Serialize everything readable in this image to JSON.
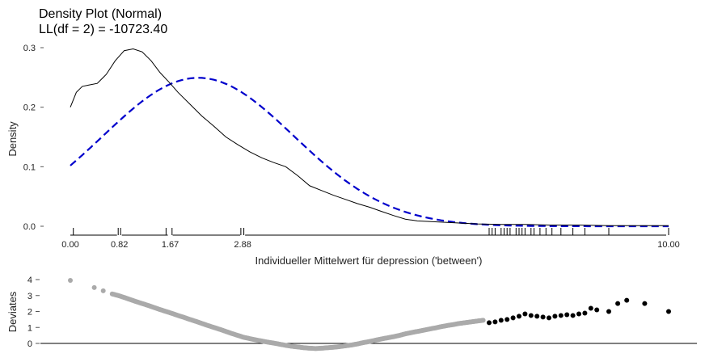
{
  "chart_data": [
    {
      "type": "line",
      "title": "Density Plot (Normal)",
      "subtitle": "LL(df = 2) = -10723.40",
      "xlabel": "Individueller Mittelwert für depression ('between')",
      "ylabel": "Density",
      "xlim": [
        0,
        10
      ],
      "ylim": [
        0,
        0.3
      ],
      "x_ticks": [
        0,
        0.82,
        1.67,
        2.88,
        10
      ],
      "x_tick_labels": [
        "0.00",
        "0.82",
        "1.67",
        "2.88",
        "10.00"
      ],
      "y_ticks": [
        0,
        0.1,
        0.2,
        0.3
      ],
      "y_tick_labels": [
        "0.0",
        "0.1",
        "0.2",
        "0.3"
      ],
      "grid": false,
      "series": [
        {
          "style": "solid",
          "color": "#000000",
          "x": [
            0.0,
            0.1,
            0.2,
            0.3,
            0.45,
            0.6,
            0.75,
            0.9,
            1.05,
            1.2,
            1.35,
            1.5,
            1.65,
            1.8,
            2.0,
            2.2,
            2.4,
            2.6,
            2.8,
            3.0,
            3.2,
            3.4,
            3.6,
            3.8,
            4.0,
            4.2,
            4.4,
            4.6,
            4.8,
            5.0,
            5.2,
            5.4,
            5.6,
            5.8,
            6.0,
            6.4,
            6.8,
            7.2,
            7.6,
            8.0,
            8.5,
            9.0,
            9.5,
            10.0
          ],
          "y": [
            0.2,
            0.225,
            0.235,
            0.237,
            0.24,
            0.255,
            0.278,
            0.295,
            0.298,
            0.293,
            0.278,
            0.258,
            0.242,
            0.225,
            0.205,
            0.185,
            0.168,
            0.15,
            0.137,
            0.125,
            0.115,
            0.107,
            0.1,
            0.085,
            0.068,
            0.06,
            0.052,
            0.045,
            0.038,
            0.032,
            0.025,
            0.018,
            0.012,
            0.009,
            0.008,
            0.006,
            0.004,
            0.003,
            0.003,
            0.002,
            0.002,
            0.001,
            0.001,
            0.001
          ]
        },
        {
          "style": "dashed",
          "color": "#0000cc",
          "distribution": "normal",
          "mean": 2.14,
          "sd": 1.6
        }
      ],
      "rug_ticks": [
        0.05,
        0.8,
        0.84,
        1.6,
        1.7,
        2.85,
        2.9,
        7.0,
        7.05,
        7.1,
        7.2,
        7.25,
        7.3,
        7.35,
        7.45,
        7.5,
        7.55,
        7.6,
        7.7,
        7.75,
        7.85,
        7.95,
        8.05,
        8.2,
        8.4,
        8.6,
        9.0,
        10.0
      ]
    },
    {
      "type": "scatter",
      "ylabel": "Deviates",
      "xlim": [
        0,
        10
      ],
      "ylim": [
        0,
        4
      ],
      "y_ticks": [
        0,
        1,
        2,
        3,
        4
      ],
      "y_tick_labels": [
        "0",
        "1",
        "2",
        "3",
        "4"
      ],
      "grid": false,
      "grey_color": "#aaaaaa",
      "black_color": "#000000",
      "grey_points": {
        "x": [
          0.0,
          0.4,
          0.55,
          0.7,
          0.8,
          0.9,
          1.0,
          1.1,
          1.2,
          1.3,
          1.4,
          1.5,
          1.6,
          1.7,
          1.8,
          1.9,
          2.0,
          2.1,
          2.2,
          2.3,
          2.4,
          2.5,
          2.6,
          2.7,
          2.8,
          2.9,
          3.0,
          3.1,
          3.2,
          3.3,
          3.4,
          3.5,
          3.6,
          3.7,
          3.8,
          3.9,
          4.0,
          4.1,
          4.2,
          4.3,
          4.4,
          4.5,
          4.6,
          4.7,
          4.8,
          4.9,
          5.0,
          5.1,
          5.2,
          5.3,
          5.4,
          5.5,
          5.6,
          5.7,
          5.8,
          5.9,
          6.0,
          6.1,
          6.2,
          6.3,
          6.4,
          6.5,
          6.6,
          6.7,
          6.8,
          6.9
        ],
        "y": [
          3.95,
          3.5,
          3.3,
          3.1,
          3.0,
          2.88,
          2.75,
          2.62,
          2.5,
          2.38,
          2.25,
          2.12,
          2.0,
          1.88,
          1.75,
          1.63,
          1.5,
          1.38,
          1.25,
          1.12,
          1.0,
          0.88,
          0.75,
          0.62,
          0.5,
          0.38,
          0.3,
          0.22,
          0.15,
          0.08,
          0.02,
          -0.05,
          -0.12,
          -0.18,
          -0.22,
          -0.27,
          -0.3,
          -0.32,
          -0.3,
          -0.27,
          -0.24,
          -0.2,
          -0.15,
          -0.1,
          -0.03,
          0.05,
          0.12,
          0.2,
          0.28,
          0.35,
          0.42,
          0.5,
          0.6,
          0.68,
          0.75,
          0.82,
          0.9,
          0.97,
          1.05,
          1.12,
          1.18,
          1.25,
          1.3,
          1.35,
          1.4,
          1.45
        ]
      },
      "black_points": {
        "x": [
          7.0,
          7.1,
          7.2,
          7.3,
          7.4,
          7.5,
          7.6,
          7.7,
          7.8,
          7.9,
          8.0,
          8.1,
          8.2,
          8.3,
          8.4,
          8.5,
          8.6,
          8.7,
          8.8,
          9.0,
          9.15,
          9.3,
          9.6,
          10.0
        ],
        "y": [
          1.3,
          1.35,
          1.45,
          1.5,
          1.6,
          1.7,
          1.85,
          1.75,
          1.7,
          1.65,
          1.6,
          1.7,
          1.75,
          1.8,
          1.75,
          1.85,
          1.9,
          2.2,
          2.1,
          2.0,
          2.5,
          2.7,
          2.5,
          2.0
        ]
      }
    }
  ]
}
